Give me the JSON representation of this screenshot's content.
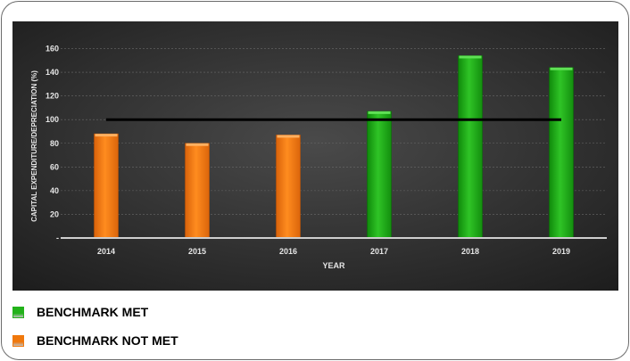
{
  "chart_data": {
    "type": "bar",
    "categories": [
      "2014",
      "2015",
      "2016",
      "2017",
      "2018",
      "2019"
    ],
    "values": [
      88,
      80,
      87,
      107,
      154,
      144
    ],
    "benchmark_met": [
      false,
      false,
      false,
      true,
      true,
      true
    ],
    "benchmark_line": 100,
    "title": "",
    "xlabel": "YEAR",
    "ylabel": "CAPITAL EXPENDITURE/DEPRECIATION (%)",
    "ylim": [
      0,
      170
    ],
    "yticks": [
      0,
      20,
      40,
      60,
      80,
      100,
      120,
      140,
      160
    ],
    "ytick_labels": [
      "-",
      "20",
      "40",
      "60",
      "80",
      "100",
      "120",
      "140",
      "160"
    ],
    "grid": true,
    "legend_placement": "bottom-left",
    "colors": {
      "met": "#22b21a",
      "not_met": "#f0780c",
      "benchmark": "#000000",
      "plot_background": "#3b3b3b"
    }
  },
  "legend": {
    "items": [
      {
        "label": "BENCHMARK MET",
        "color": "#22b21a"
      },
      {
        "label": "BENCHMARK NOT MET",
        "color": "#f0780c"
      }
    ]
  }
}
